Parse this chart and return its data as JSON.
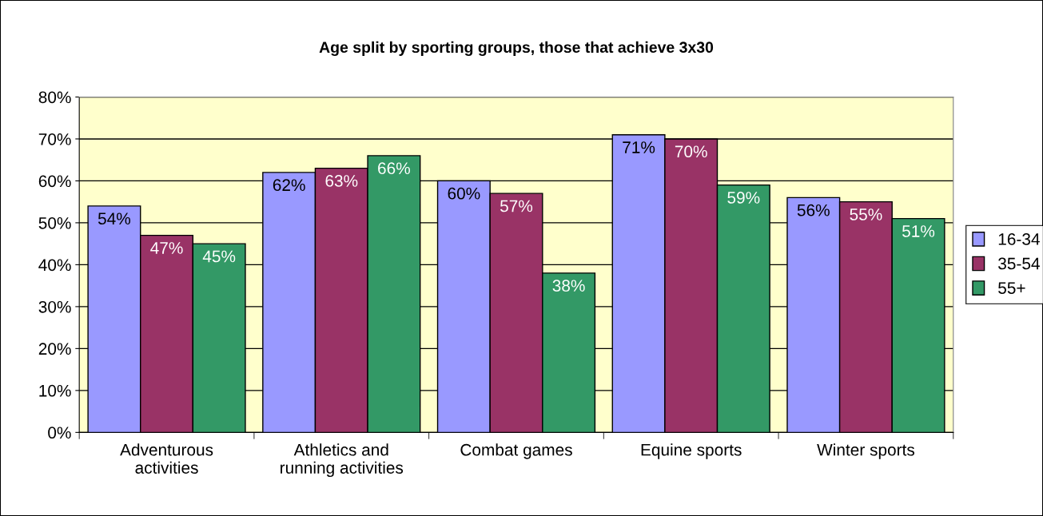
{
  "chart_data": {
    "type": "bar",
    "title": "Age split by sporting groups, those that achieve 3x30",
    "categories": [
      "Adventurous\nactivities",
      "Athletics and\nrunning activities",
      "Combat games",
      "Equine sports",
      "Winter sports"
    ],
    "series": [
      {
        "name": "16-34",
        "color": "#9999ff",
        "values": [
          54,
          62,
          60,
          71,
          56
        ],
        "value_labels": [
          "54%",
          "62%",
          "60%",
          "71%",
          "56%"
        ]
      },
      {
        "name": "35-54",
        "color": "#993366",
        "values": [
          47,
          63,
          57,
          70,
          55
        ],
        "value_labels": [
          "47%",
          "63%",
          "57%",
          "70%",
          "55%"
        ]
      },
      {
        "name": "55+",
        "color": "#339966",
        "values": [
          45,
          66,
          38,
          59,
          51
        ],
        "value_labels": [
          "45%",
          "66%",
          "38%",
          "59%",
          "51%"
        ]
      }
    ],
    "ylim": [
      0,
      80
    ],
    "yticks": [
      {
        "value": 0,
        "label": "0%"
      },
      {
        "value": 10,
        "label": "10%"
      },
      {
        "value": 20,
        "label": "20%"
      },
      {
        "value": 30,
        "label": "30%"
      },
      {
        "value": 40,
        "label": "40%"
      },
      {
        "value": 50,
        "label": "50%"
      },
      {
        "value": 60,
        "label": "60%"
      },
      {
        "value": 70,
        "label": "70%"
      },
      {
        "value": 80,
        "label": "80%"
      }
    ],
    "grid": "y",
    "legend": "right"
  }
}
